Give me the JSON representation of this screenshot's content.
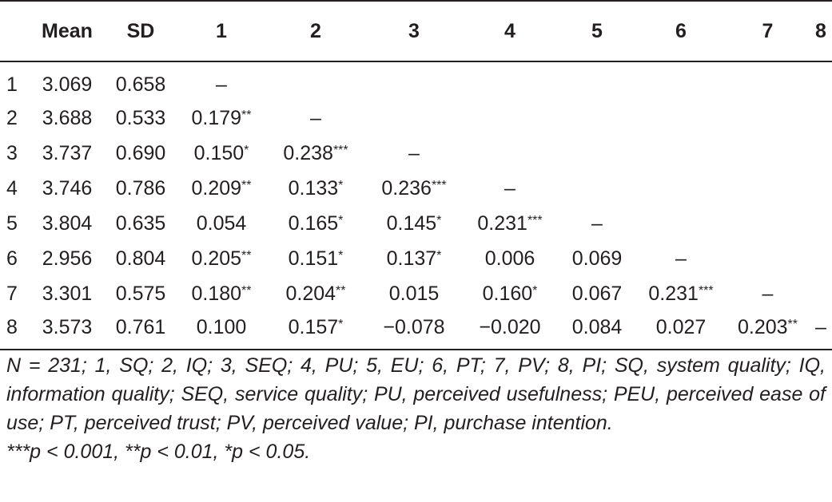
{
  "table": {
    "headers": [
      "",
      "Mean",
      "SD",
      "1",
      "2",
      "3",
      "4",
      "5",
      "6",
      "7",
      "8"
    ],
    "rows": [
      [
        "1",
        "3.069",
        "0.658",
        "–",
        "",
        "",
        "",
        "",
        "",
        "",
        ""
      ],
      [
        "2",
        "3.688",
        "0.533",
        "0.179**",
        "–",
        "",
        "",
        "",
        "",
        "",
        ""
      ],
      [
        "3",
        "3.737",
        "0.690",
        "0.150*",
        "0.238***",
        "–",
        "",
        "",
        "",
        "",
        ""
      ],
      [
        "4",
        "3.746",
        "0.786",
        "0.209**",
        "0.133*",
        "0.236***",
        "–",
        "",
        "",
        "",
        ""
      ],
      [
        "5",
        "3.804",
        "0.635",
        "0.054",
        "0.165*",
        "0.145*",
        "0.231***",
        "–",
        "",
        "",
        ""
      ],
      [
        "6",
        "2.956",
        "0.804",
        "0.205**",
        "0.151*",
        "0.137*",
        "0.006",
        "0.069",
        "–",
        "",
        ""
      ],
      [
        "7",
        "3.301",
        "0.575",
        "0.180**",
        "0.204**",
        "0.015",
        "0.160*",
        "0.067",
        "0.231***",
        "–",
        ""
      ],
      [
        "8",
        "3.573",
        "0.761",
        "0.100",
        "0.157*",
        "−0.078",
        "−0.020",
        "0.084",
        "0.027",
        "0.203**",
        "–"
      ]
    ]
  },
  "notes": {
    "abbreviations": "N = 231; 1, SQ; 2, IQ; 3, SEQ; 4, PU; 5, EU; 6, PT; 7, PV; 8, PI; SQ, system quality; IQ, information quality; SEQ, service quality; PU, perceived usefulness; PEU, perceived ease of use; PT, perceived trust; PV, perceived value; PI, purchase intention.",
    "significance": "***p < 0.001, **p < 0.01, *p < 0.05."
  }
}
